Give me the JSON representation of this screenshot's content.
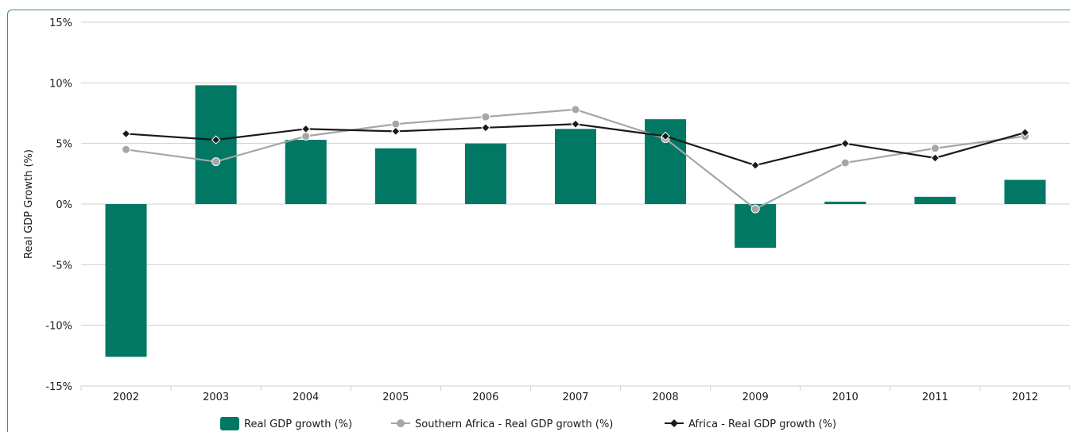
{
  "chart_data": {
    "type": "bar",
    "categories": [
      "2002",
      "2003",
      "2004",
      "2005",
      "2006",
      "2007",
      "2008",
      "2009",
      "2010",
      "2011",
      "2012"
    ],
    "ylabel": "Real GDP Growth (%)",
    "ylim": [
      -15,
      15
    ],
    "yticks": [
      15,
      10,
      5,
      0,
      -5,
      -10,
      -15
    ],
    "ytick_labels": [
      "15%",
      "10%",
      "5%",
      "0%",
      "-5%",
      "-10%",
      "-15%"
    ],
    "grid": true,
    "legend_position": "bottom",
    "series": [
      {
        "name": "Real GDP growth (%)",
        "kind": "bar",
        "color": "#007864",
        "values": [
          -12.6,
          9.8,
          5.3,
          4.6,
          5.0,
          6.2,
          7.0,
          -3.6,
          0.2,
          0.6,
          2.0
        ]
      },
      {
        "name": "Southern Africa - Real GDP growth (%)",
        "kind": "line",
        "marker": "circle",
        "color": "#a6a6a6",
        "values": [
          4.5,
          3.5,
          5.6,
          6.6,
          7.2,
          7.8,
          5.4,
          -0.4,
          3.4,
          4.6,
          5.6
        ]
      },
      {
        "name": "Africa - Real GDP growth (%)",
        "kind": "line",
        "marker": "diamond",
        "color": "#1a1a1a",
        "values": [
          5.8,
          5.3,
          6.2,
          6.0,
          6.3,
          6.6,
          5.6,
          3.2,
          5.0,
          3.8,
          5.9
        ]
      }
    ]
  }
}
